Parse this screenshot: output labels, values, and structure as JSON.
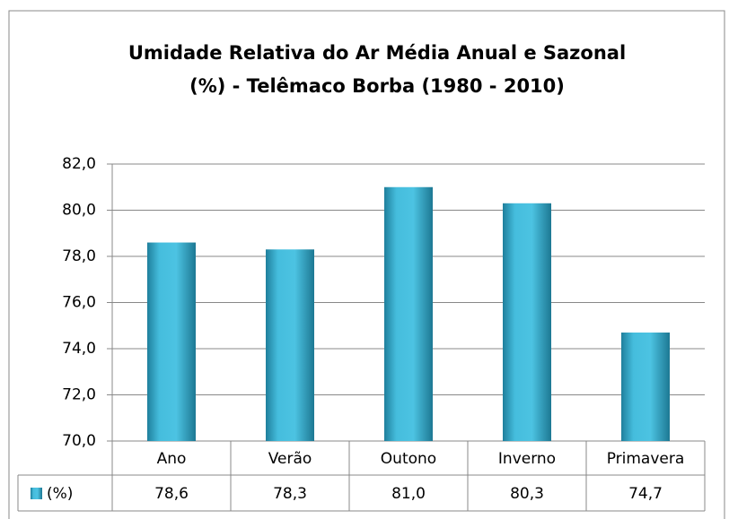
{
  "chart_data": {
    "type": "bar",
    "title": [
      "Umidade Relativa do Ar Média Anual e Sazonal",
      "(%) - Telêmaco Borba (1980 - 2010)"
    ],
    "categories": [
      "Ano",
      "Verão",
      "Outono",
      "Inverno",
      "Primavera"
    ],
    "series": [
      {
        "name": "(%)",
        "color": "#3fb6d6",
        "values": [
          78.6,
          78.3,
          81.0,
          80.3,
          74.7
        ],
        "value_labels": [
          "78,6",
          "78,3",
          "81,0",
          "80,3",
          "74,7"
        ]
      }
    ],
    "ylim": [
      70,
      82
    ],
    "yticks": [
      {
        "value": 70,
        "label": "70,0"
      },
      {
        "value": 72,
        "label": "72,0"
      },
      {
        "value": 74,
        "label": "74,0"
      },
      {
        "value": 76,
        "label": "76,0"
      },
      {
        "value": 78,
        "label": "78,0"
      },
      {
        "value": 80,
        "label": "80,0"
      },
      {
        "value": 82,
        "label": "82,0"
      }
    ],
    "grid": true
  }
}
